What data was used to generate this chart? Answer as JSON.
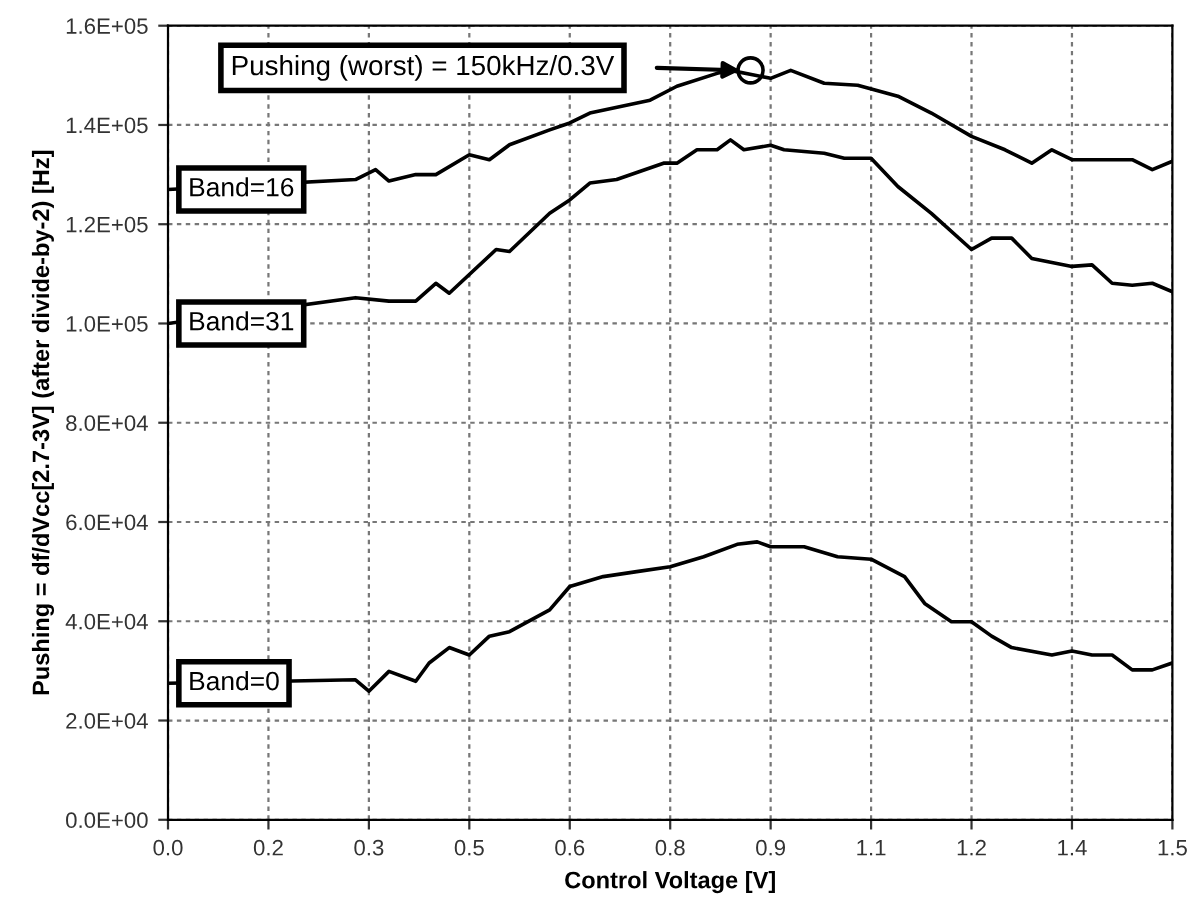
{
  "chart_data": {
    "type": "line",
    "xlabel": "Control Voltage [V]",
    "ylabel": "Pushing = df/dVcc[2.7-3V] (after divide-by-2) [Hz]",
    "xlim": [
      0,
      1.5
    ],
    "ylim": [
      0,
      160000
    ],
    "xticks": [
      {
        "value": 0,
        "label": "0.0"
      },
      {
        "value": 0.15,
        "label": "0.2"
      },
      {
        "value": 0.3,
        "label": "0.3"
      },
      {
        "value": 0.45,
        "label": "0.5"
      },
      {
        "value": 0.6,
        "label": "0.6"
      },
      {
        "value": 0.75,
        "label": "0.8"
      },
      {
        "value": 0.9,
        "label": "0.9"
      },
      {
        "value": 1.05,
        "label": "1.1"
      },
      {
        "value": 1.2,
        "label": "1.2"
      },
      {
        "value": 1.35,
        "label": "1.4"
      },
      {
        "value": 1.5,
        "label": "1.5"
      }
    ],
    "yticks": [
      {
        "value": 0,
        "label": "0.0E+00"
      },
      {
        "value": 20000,
        "label": "2.0E+04"
      },
      {
        "value": 40000,
        "label": "4.0E+04"
      },
      {
        "value": 60000,
        "label": "6.0E+04"
      },
      {
        "value": 80000,
        "label": "8.0E+04"
      },
      {
        "value": 100000,
        "label": "1.0E+05"
      },
      {
        "value": 120000,
        "label": "1.2E+05"
      },
      {
        "value": 140000,
        "label": "1.4E+05"
      },
      {
        "value": 160000,
        "label": "1.6E+05"
      }
    ],
    "grid": true,
    "legend": "left",
    "marker": "none",
    "line_style": "solid",
    "series": [
      {
        "name": "Band=16",
        "color": "#000000",
        "x": [
          0,
          0.28,
          0.31,
          0.33,
          0.37,
          0.4,
          0.45,
          0.48,
          0.51,
          0.57,
          0.6,
          0.63,
          0.72,
          0.76,
          0.82,
          0.84,
          0.9,
          0.93,
          0.98,
          1.03,
          1.09,
          1.14,
          1.2,
          1.25,
          1.29,
          1.32,
          1.35,
          1.44,
          1.47,
          1.5
        ],
        "values": [
          127000,
          129000,
          131000,
          128700,
          130000,
          130000,
          134000,
          133000,
          136000,
          139000,
          140400,
          142400,
          145000,
          147800,
          150400,
          151000,
          149400,
          151000,
          148400,
          148000,
          145800,
          142400,
          137700,
          135000,
          132300,
          135000,
          133000,
          133000,
          131000,
          132700
        ]
      },
      {
        "name": "Band=31",
        "color": "#000000",
        "x": [
          0,
          0.28,
          0.33,
          0.37,
          0.4,
          0.42,
          0.49,
          0.51,
          0.57,
          0.6,
          0.63,
          0.67,
          0.74,
          0.76,
          0.79,
          0.82,
          0.84,
          0.86,
          0.9,
          0.92,
          0.98,
          1.01,
          1.05,
          1.09,
          1.14,
          1.2,
          1.23,
          1.26,
          1.29,
          1.35,
          1.38,
          1.41,
          1.44,
          1.47,
          1.5
        ],
        "values": [
          100000,
          105200,
          104500,
          104500,
          108100,
          106100,
          114900,
          114500,
          122200,
          124900,
          128300,
          129000,
          132300,
          132300,
          135000,
          135000,
          137000,
          135000,
          135900,
          135000,
          134300,
          133300,
          133300,
          127600,
          122200,
          114900,
          117200,
          117200,
          113100,
          111500,
          111800,
          108100,
          107700,
          108100,
          106400
        ]
      },
      {
        "name": "Band=0",
        "color": "#000000",
        "x": [
          0,
          0.28,
          0.3,
          0.33,
          0.37,
          0.39,
          0.42,
          0.45,
          0.48,
          0.51,
          0.57,
          0.6,
          0.65,
          0.7,
          0.75,
          0.8,
          0.85,
          0.88,
          0.9,
          0.95,
          1.0,
          1.05,
          1.1,
          1.13,
          1.17,
          1.2,
          1.23,
          1.26,
          1.32,
          1.35,
          1.38,
          1.41,
          1.44,
          1.47,
          1.5
        ],
        "values": [
          27500,
          28200,
          25900,
          29900,
          27900,
          31600,
          34700,
          33200,
          37000,
          37900,
          42300,
          47000,
          49000,
          50000,
          51000,
          53000,
          55500,
          56000,
          55000,
          55000,
          53000,
          52500,
          49000,
          43600,
          39900,
          39900,
          37000,
          34700,
          33200,
          34000,
          33200,
          33200,
          30200,
          30200,
          31600
        ]
      }
    ],
    "annotations": [
      "Pushing (worst) = 150kHz/0.3V"
    ]
  }
}
